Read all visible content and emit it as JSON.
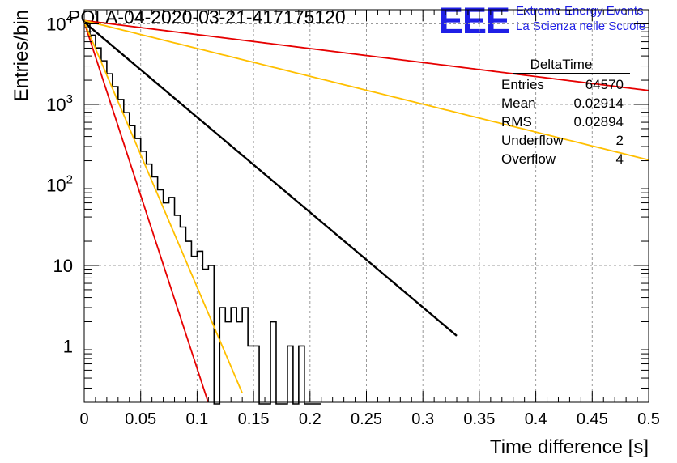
{
  "chart_data": {
    "type": "histogram",
    "title": "POLA-04-2020-03-21-417175120",
    "xlabel": "Time difference [s]",
    "ylabel": "Entries/bin",
    "xlim": [
      0,
      0.5
    ],
    "ylim": [
      0.2,
      15000
    ],
    "yscale": "log",
    "grid": true,
    "x_ticks": [
      "0",
      "0.05",
      "0.1",
      "0.15",
      "0.2",
      "0.25",
      "0.3",
      "0.35",
      "0.4",
      "0.45",
      "0.5"
    ],
    "x_tick_values": [
      0,
      0.05,
      0.1,
      0.15,
      0.2,
      0.25,
      0.3,
      0.35,
      0.4,
      0.45,
      0.5
    ],
    "y_ticks": [
      {
        "value": 1,
        "base": "1",
        "exp": ""
      },
      {
        "value": 10,
        "base": "10",
        "exp": ""
      },
      {
        "value": 100,
        "base": "10",
        "exp": "2"
      },
      {
        "value": 1000,
        "base": "10",
        "exp": "3"
      },
      {
        "value": 10000,
        "base": "10",
        "exp": "4"
      }
    ],
    "bin_width": 0.005,
    "histogram_counts": [
      10500,
      7250,
      5030,
      3480,
      2400,
      1660,
      1150,
      790,
      545,
      378,
      262,
      182,
      126,
      87,
      60,
      70,
      42,
      30,
      20,
      13,
      15,
      9,
      10,
      0.1,
      3,
      2,
      3,
      2,
      3,
      1,
      1,
      0.1,
      0.1,
      2,
      0.1,
      0.1,
      1,
      0.1,
      1,
      0.1,
      0.1,
      0.1
    ],
    "fit_curves": [
      {
        "color": "#000000",
        "A": 10500,
        "tau": 0.0368,
        "x_end": 0.33
      },
      {
        "color": "#e60000",
        "A": 11000,
        "tau": 0.25,
        "x_end": 0.5
      },
      {
        "color": "#ffbf00",
        "A": 11000,
        "tau": 0.1255,
        "x_end": 0.5
      },
      {
        "color": "#e60000",
        "A": 10500,
        "tau": 0.0101,
        "x_end": 0.115
      },
      {
        "color": "#ffbf00",
        "A": 10500,
        "tau": 0.0132,
        "x_end": 0.14
      }
    ],
    "stats_box": {
      "title": "DeltaTime",
      "rows": [
        {
          "label": "Entries",
          "value": "64570"
        },
        {
          "label": "Mean",
          "value": "0.02914"
        },
        {
          "label": "RMS",
          "value": "0.02894"
        },
        {
          "label": "Underflow",
          "value": "2"
        },
        {
          "label": "Overflow",
          "value": "4"
        }
      ]
    }
  },
  "logo": {
    "mark": "EEE",
    "line1": "Extreme Energy Events",
    "line2": "La Scienza nelle Scuole"
  }
}
